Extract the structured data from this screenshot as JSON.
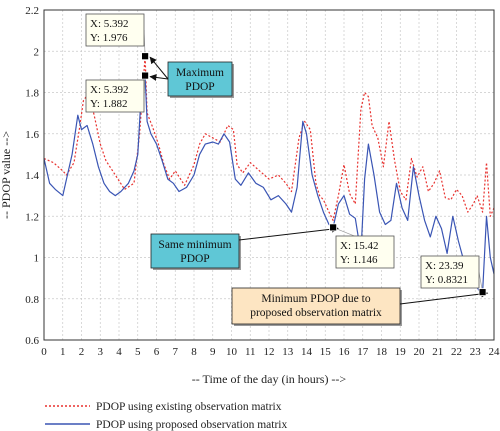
{
  "chart_data": {
    "type": "line",
    "xlabel": "-- Time of the day (in hours) -->",
    "ylabel": "-- PDOP value -->",
    "xlim": [
      0,
      24
    ],
    "ylim": [
      0.6,
      2.2
    ],
    "xticks": [
      0,
      1,
      2,
      3,
      4,
      5,
      6,
      7,
      8,
      9,
      10,
      11,
      12,
      13,
      14,
      15,
      16,
      17,
      18,
      19,
      20,
      21,
      22,
      23,
      24
    ],
    "yticks": [
      0.6,
      0.8,
      1.0,
      1.2,
      1.4,
      1.6,
      1.8,
      2.0,
      2.2
    ],
    "ytick_labels": [
      "0.6",
      "0.8",
      "1",
      "1.2",
      "1.4",
      "1.6",
      "1.8",
      "2",
      "2.2"
    ],
    "grid": true,
    "legend_position": "bottom-left",
    "series": [
      {
        "name": "PDOP using existing observation matrix",
        "color": "#e8312e",
        "style": "dotted",
        "x": [
          0,
          0.5,
          1.0,
          1.2,
          1.6,
          1.9,
          2.1,
          2.4,
          2.7,
          3.0,
          3.3,
          3.8,
          4.3,
          4.8,
          5.1,
          5.392,
          5.5,
          5.8,
          6.1,
          6.4,
          6.7,
          7.0,
          7.5,
          8.0,
          8.3,
          8.6,
          9.0,
          9.4,
          9.8,
          10.1,
          10.3,
          10.6,
          11.0,
          11.5,
          12.0,
          12.5,
          12.9,
          13.2,
          13.6,
          13.9,
          14.2,
          14.5,
          14.7,
          14.9,
          15.2,
          15.42,
          15.7,
          16.0,
          16.3,
          16.6,
          16.9,
          17.1,
          17.3,
          17.5,
          17.8,
          18.1,
          18.4,
          18.7,
          19.0,
          19.3,
          19.6,
          19.9,
          20.2,
          20.5,
          20.8,
          21.1,
          21.4,
          21.7,
          22.0,
          22.3,
          22.6,
          22.9,
          23.1,
          23.39,
          23.6,
          23.8,
          24.0
        ],
        "y": [
          1.48,
          1.46,
          1.42,
          1.4,
          1.46,
          1.63,
          1.76,
          1.8,
          1.68,
          1.55,
          1.47,
          1.4,
          1.33,
          1.36,
          1.6,
          1.976,
          1.7,
          1.63,
          1.55,
          1.45,
          1.38,
          1.42,
          1.35,
          1.45,
          1.55,
          1.6,
          1.58,
          1.56,
          1.64,
          1.62,
          1.45,
          1.41,
          1.46,
          1.42,
          1.38,
          1.4,
          1.36,
          1.32,
          1.58,
          1.66,
          1.62,
          1.36,
          1.3,
          1.28,
          1.22,
          1.18,
          1.3,
          1.45,
          1.31,
          1.26,
          1.72,
          1.8,
          1.78,
          1.64,
          1.58,
          1.44,
          1.66,
          1.47,
          1.32,
          1.28,
          1.48,
          1.39,
          1.44,
          1.32,
          1.36,
          1.42,
          1.29,
          1.28,
          1.33,
          1.3,
          1.22,
          1.26,
          1.3,
          1.22,
          1.46,
          1.2,
          1.24
        ]
      },
      {
        "name": "PDOP using proposed observation matrix",
        "color": "#3a55b4",
        "style": "solid",
        "x": [
          0,
          0.3,
          0.6,
          1.0,
          1.2,
          1.5,
          1.8,
          2.0,
          2.3,
          2.6,
          2.9,
          3.2,
          3.5,
          3.8,
          4.1,
          4.5,
          4.8,
          5.0,
          5.2,
          5.392,
          5.5,
          5.7,
          6.0,
          6.3,
          6.6,
          6.9,
          7.2,
          7.6,
          8.0,
          8.3,
          8.6,
          9.0,
          9.3,
          9.6,
          9.9,
          10.2,
          10.5,
          10.9,
          11.3,
          11.7,
          12.1,
          12.5,
          12.9,
          13.2,
          13.5,
          13.8,
          14.0,
          14.3,
          14.6,
          14.9,
          15.2,
          15.42,
          15.7,
          16.0,
          16.3,
          16.6,
          16.9,
          17.1,
          17.3,
          17.6,
          17.9,
          18.2,
          18.5,
          18.8,
          19.1,
          19.4,
          19.7,
          20.0,
          20.3,
          20.6,
          20.9,
          21.2,
          21.5,
          21.8,
          22.1,
          22.4,
          22.7,
          23.0,
          23.2,
          23.39,
          23.6,
          23.8,
          24.0
        ],
        "y": [
          1.48,
          1.36,
          1.33,
          1.3,
          1.38,
          1.5,
          1.69,
          1.62,
          1.64,
          1.55,
          1.44,
          1.36,
          1.32,
          1.3,
          1.32,
          1.36,
          1.42,
          1.5,
          1.82,
          1.882,
          1.66,
          1.6,
          1.55,
          1.47,
          1.38,
          1.36,
          1.32,
          1.34,
          1.4,
          1.5,
          1.55,
          1.56,
          1.55,
          1.6,
          1.56,
          1.38,
          1.35,
          1.41,
          1.36,
          1.34,
          1.28,
          1.3,
          1.26,
          1.22,
          1.34,
          1.66,
          1.6,
          1.4,
          1.3,
          1.22,
          1.16,
          1.146,
          1.26,
          1.3,
          1.21,
          1.19,
          1.02,
          1.38,
          1.55,
          1.4,
          1.22,
          1.16,
          1.18,
          1.36,
          1.24,
          1.18,
          1.44,
          1.3,
          1.18,
          1.1,
          1.2,
          1.14,
          1.02,
          1.2,
          1.08,
          0.98,
          0.96,
          0.87,
          0.84,
          0.8321,
          1.2,
          1.0,
          0.92
        ]
      }
    ],
    "annotations": [
      {
        "label_x": "X: 5.392",
        "label_y": "Y: 1.976",
        "point": [
          5.392,
          1.976
        ]
      },
      {
        "label_x": "X: 5.392",
        "label_y": "Y: 1.882",
        "point": [
          5.392,
          1.882
        ]
      },
      {
        "label_x": "X: 15.42",
        "label_y": "Y: 1.146",
        "point": [
          15.42,
          1.146
        ]
      },
      {
        "label_x": "X: 23.39",
        "label_y": "Y: 0.8321",
        "point": [
          23.39,
          0.8321
        ]
      }
    ],
    "callouts": [
      {
        "lines": [
          "Maximum",
          "PDOP"
        ],
        "fill": "#5fc7d6"
      },
      {
        "lines": [
          "Same minimum",
          "PDOP"
        ],
        "fill": "#5fc7d6"
      },
      {
        "lines": [
          "Minimum PDOP due to",
          "proposed observation matrix"
        ],
        "fill": "#fde5c2"
      }
    ]
  }
}
